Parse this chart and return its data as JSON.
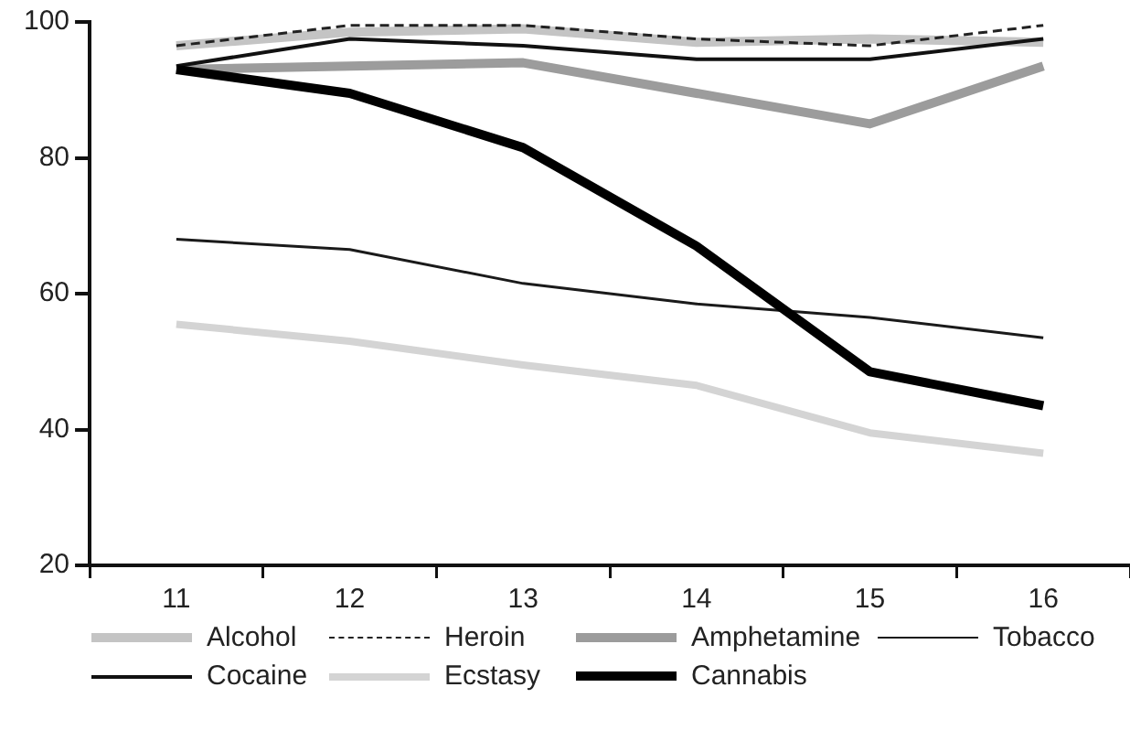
{
  "chart_data": {
    "type": "line",
    "categories": [
      "11",
      "12",
      "13",
      "14",
      "15",
      "16"
    ],
    "ylim": [
      20,
      100
    ],
    "yticks": [
      20,
      40,
      60,
      80,
      100
    ],
    "grid": false,
    "legend": "bottom",
    "marker": "none",
    "series": [
      {
        "name": "Alcohol",
        "color": "#c4c4c4",
        "values": [
          96.5,
          98.5,
          99,
          97,
          97.5,
          97
        ]
      },
      {
        "name": "Heroin",
        "color": "#222222",
        "line_style": "dashed",
        "values": [
          96.5,
          99.5,
          99.5,
          97.5,
          96.5,
          99.5
        ]
      },
      {
        "name": "Amphetamine",
        "color": "#9c9c9c",
        "values": [
          93,
          93.5,
          94,
          89.5,
          85,
          93.5
        ]
      },
      {
        "name": "Tobacco",
        "color": "#1a1a1a",
        "values": [
          68,
          66.5,
          61.5,
          58.5,
          56.5,
          53.5
        ]
      },
      {
        "name": "Cocaine",
        "color": "#111111",
        "values": [
          93.5,
          97.5,
          96.5,
          94.5,
          94.5,
          97.5
        ]
      },
      {
        "name": "Ecstasy",
        "color": "#d4d4d4",
        "values": [
          55.5,
          53,
          49.5,
          46.5,
          39.5,
          36.5
        ]
      },
      {
        "name": "Cannabis",
        "color": "#000000",
        "values": [
          93,
          89.5,
          81.5,
          67,
          48.5,
          43.5
        ]
      }
    ]
  }
}
